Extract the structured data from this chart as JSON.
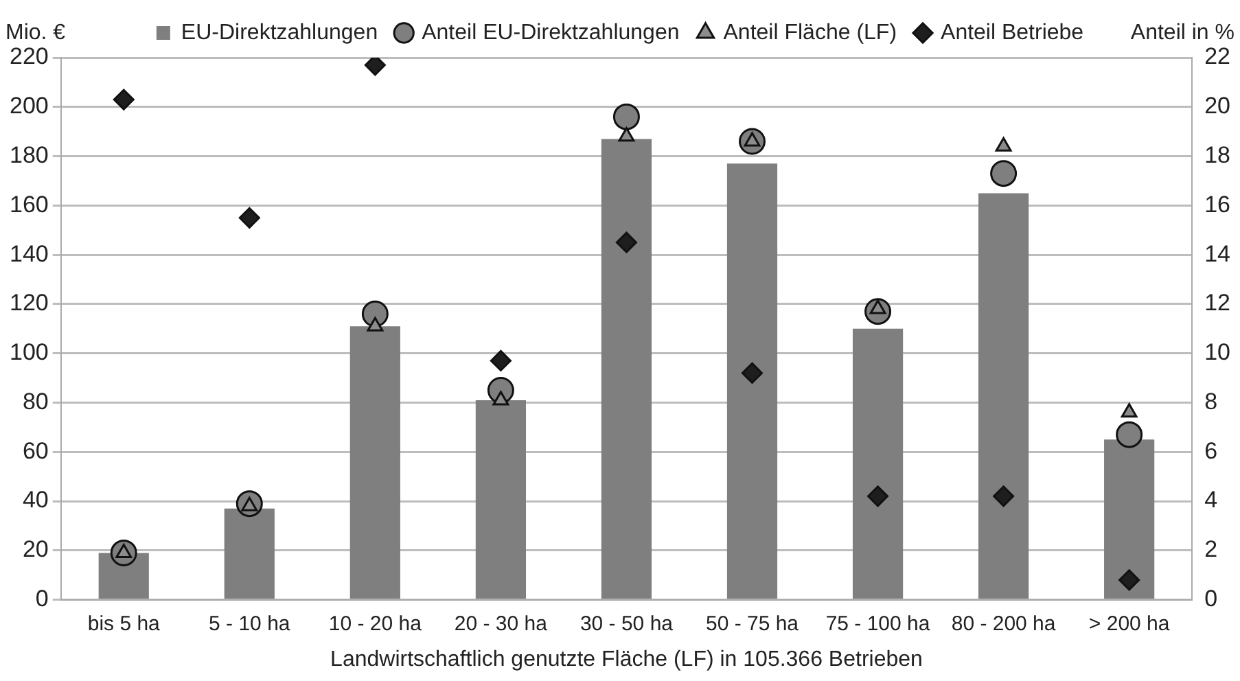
{
  "chart_data": {
    "type": "bar",
    "xlabel": "Landwirtschaftlich genutzte Fläche (LF) in 105.366 Betrieben",
    "ylabel": "Mio. €",
    "y2label": "Anteil in %",
    "categories": [
      "bis 5 ha",
      "5 - 10 ha",
      "10 - 20 ha",
      "20 - 30 ha",
      "30 - 50 ha",
      "50 - 75 ha",
      "75 - 100 ha",
      "80 - 200 ha",
      "> 200 ha"
    ],
    "series": [
      {
        "name": "EU-Direktzahlungen",
        "type": "bar",
        "color": "#7f7f7f",
        "values": [
          19,
          37,
          111,
          81,
          187,
          177,
          110,
          165,
          65
        ]
      },
      {
        "name": "Anteil EU-Direktzahlungen",
        "type": "scatter",
        "axis": "y2",
        "marker": "circle",
        "color": "#7f7f7f",
        "values": [
          1.9,
          3.9,
          11.6,
          8.5,
          19.6,
          18.6,
          11.7,
          17.3,
          6.7
        ]
      },
      {
        "name": "Anteil Fläche (LF)",
        "type": "scatter",
        "axis": "y2",
        "marker": "triangle",
        "color": "#8c8c8c",
        "values": [
          1.9,
          3.8,
          11.1,
          8.1,
          18.8,
          18.6,
          11.8,
          18.4,
          7.6
        ]
      },
      {
        "name": "Anteil Betriebe",
        "type": "scatter",
        "axis": "y2",
        "marker": "diamond",
        "color": "#1e1e1e",
        "values": [
          20.3,
          15.5,
          21.7,
          9.7,
          14.5,
          9.2,
          4.2,
          4.2,
          0.8
        ]
      }
    ],
    "ylim": [
      0,
      220
    ],
    "yticks": [
      0,
      20,
      40,
      60,
      80,
      100,
      120,
      140,
      160,
      180,
      200,
      220
    ],
    "y2lim": [
      0,
      22
    ],
    "y2ticks": [
      0,
      2,
      4,
      6,
      8,
      10,
      12,
      14,
      16,
      18,
      20,
      22
    ],
    "grid": "y",
    "legend": "top"
  }
}
